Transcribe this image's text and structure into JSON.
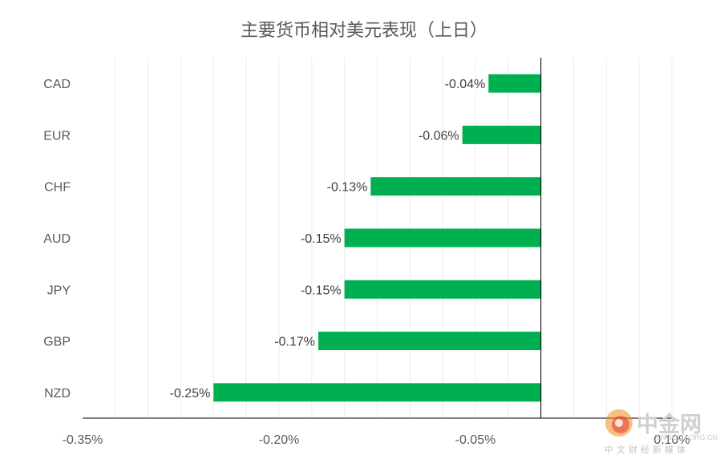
{
  "chart_data": {
    "type": "bar",
    "orientation": "horizontal",
    "title": "主要货币相对美元表现（上日）",
    "categories": [
      "CAD",
      "EUR",
      "CHF",
      "AUD",
      "JPY",
      "GBP",
      "NZD"
    ],
    "values": [
      -0.04,
      -0.06,
      -0.13,
      -0.15,
      -0.15,
      -0.17,
      -0.25
    ],
    "data_labels": [
      "-0.04%",
      "-0.06%",
      "-0.13%",
      "-0.15%",
      "-0.15%",
      "-0.17%",
      "-0.25%"
    ],
    "xlim": [
      -0.35,
      0.1
    ],
    "x_ticks": [
      -0.35,
      -0.2,
      -0.05,
      0.1
    ],
    "x_tick_labels": [
      "-0.35%",
      "-0.20%",
      "-0.05%",
      "0.10%"
    ],
    "grid": "vertical minor gridlines",
    "legend": "none",
    "bar_color": "#00b050"
  },
  "watermark": {
    "brand": "中金网",
    "url": "CNGOLD.ORG.CN",
    "subtitle": "中文财经新媒体",
    "logo_colors": [
      "#f08c1e",
      "#e0392b"
    ]
  }
}
